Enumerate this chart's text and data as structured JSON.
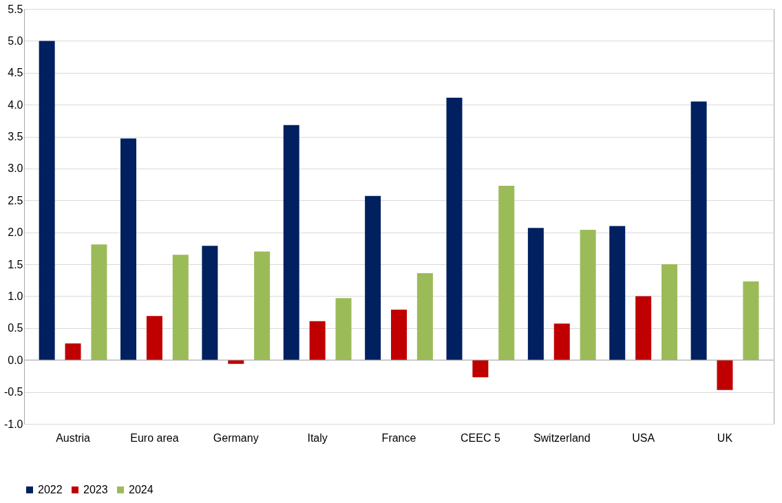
{
  "chart_data": {
    "type": "bar",
    "categories": [
      "Austria",
      "Euro area",
      "Germany",
      "Italy",
      "France",
      "CEEC 5",
      "Switzerland",
      "USA",
      "UK"
    ],
    "series": [
      {
        "name": "2022",
        "color": "#002060",
        "values": [
          5.0,
          3.47,
          1.79,
          3.68,
          2.57,
          4.11,
          2.07,
          2.1,
          4.05
        ]
      },
      {
        "name": "2023",
        "color": "#c00000",
        "values": [
          0.26,
          0.69,
          -0.06,
          0.61,
          0.79,
          -0.27,
          0.57,
          1.0,
          -0.47
        ]
      },
      {
        "name": "2024",
        "color": "#9bbb59",
        "values": [
          1.81,
          1.65,
          1.7,
          0.97,
          1.36,
          2.73,
          2.04,
          1.5,
          1.23
        ]
      }
    ],
    "ylim": [
      -1.0,
      5.5
    ],
    "yticks": [
      {
        "value": -1,
        "label": "-1.0"
      },
      {
        "value": -0.5,
        "label": "-0.5"
      },
      {
        "value": 0,
        "label": "0.0"
      },
      {
        "value": 0.5,
        "label": "0.5"
      },
      {
        "value": 1,
        "label": "1.0"
      },
      {
        "value": 1.5,
        "label": "1.5"
      },
      {
        "value": 2,
        "label": "2.0"
      },
      {
        "value": 2.5,
        "label": "2.5"
      },
      {
        "value": 3,
        "label": "3.0"
      },
      {
        "value": 3.5,
        "label": "3.5"
      },
      {
        "value": 4,
        "label": "4.0"
      },
      {
        "value": 4.5,
        "label": "4.5"
      },
      {
        "value": 5,
        "label": "5.0"
      },
      {
        "value": 5.5,
        "label": "5.5"
      }
    ],
    "grid": "y",
    "legend": "bottom"
  }
}
